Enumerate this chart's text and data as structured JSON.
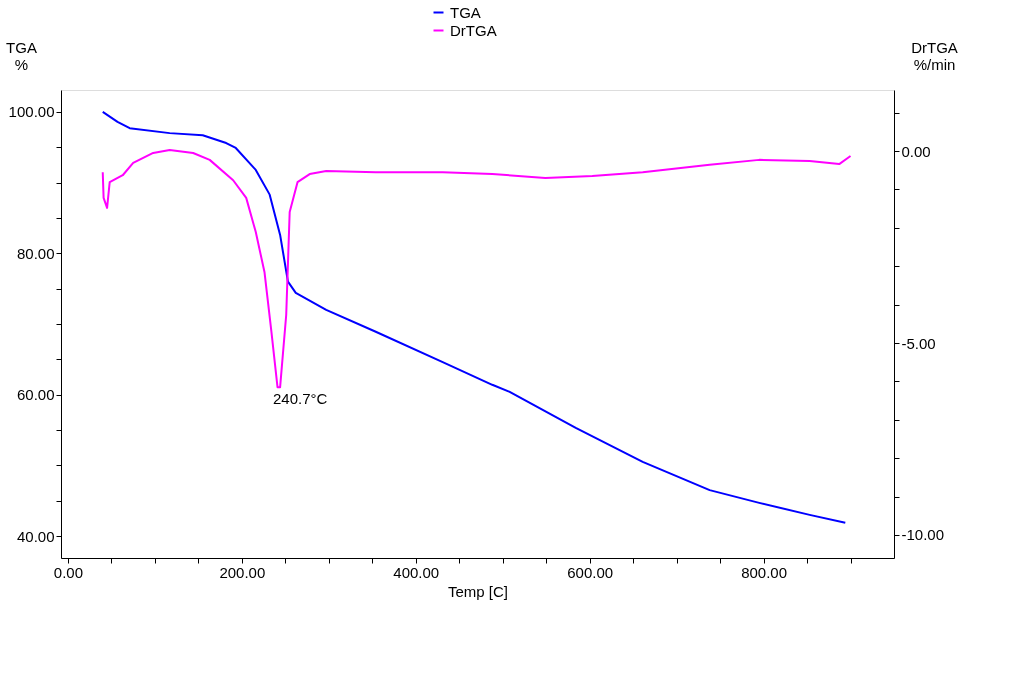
{
  "chart_data": {
    "type": "line",
    "xlabel": "Temp  [C]",
    "ylabel": "TGA\n%",
    "y2label": "DrTGA\n%/min",
    "legend": "top",
    "grid": false,
    "line_style": "solid",
    "xlim": [
      -8,
      950
    ],
    "ylim": [
      36.9,
      103.1
    ],
    "y2lim": [
      -10.6,
      1.59
    ],
    "xticks": [
      {
        "value": 0,
        "label": "0.00"
      },
      {
        "value": 50,
        "label": null
      },
      {
        "value": 100,
        "label": null
      },
      {
        "value": 150,
        "label": null
      },
      {
        "value": 200,
        "label": "200.00"
      },
      {
        "value": 250,
        "label": null
      },
      {
        "value": 300,
        "label": null
      },
      {
        "value": 350,
        "label": null
      },
      {
        "value": 400,
        "label": "400.00"
      },
      {
        "value": 450,
        "label": null
      },
      {
        "value": 500,
        "label": null
      },
      {
        "value": 550,
        "label": null
      },
      {
        "value": 600,
        "label": "600.00"
      },
      {
        "value": 650,
        "label": null
      },
      {
        "value": 700,
        "label": null
      },
      {
        "value": 750,
        "label": null
      },
      {
        "value": 800,
        "label": "800.00"
      },
      {
        "value": 850,
        "label": null
      },
      {
        "value": 900,
        "label": null
      }
    ],
    "yticks": [
      {
        "value": 40,
        "label": "40.00"
      },
      {
        "value": 45,
        "label": null
      },
      {
        "value": 50,
        "label": null
      },
      {
        "value": 55,
        "label": null
      },
      {
        "value": 60,
        "label": "60.00"
      },
      {
        "value": 65,
        "label": null
      },
      {
        "value": 70,
        "label": null
      },
      {
        "value": 75,
        "label": null
      },
      {
        "value": 80,
        "label": "80.00"
      },
      {
        "value": 85,
        "label": null
      },
      {
        "value": 90,
        "label": null
      },
      {
        "value": 95,
        "label": null
      },
      {
        "value": 100,
        "label": "100.00"
      }
    ],
    "y2ticks": [
      {
        "value": -10,
        "label": "-10.00"
      },
      {
        "value": -9,
        "label": null
      },
      {
        "value": -8,
        "label": null
      },
      {
        "value": -7,
        "label": null
      },
      {
        "value": -6,
        "label": null
      },
      {
        "value": -5,
        "label": "-5.00"
      },
      {
        "value": -4,
        "label": null
      },
      {
        "value": -3,
        "label": null
      },
      {
        "value": -2,
        "label": null
      },
      {
        "value": -1,
        "label": null
      },
      {
        "value": 0,
        "label": "0.00"
      },
      {
        "value": 1,
        "label": null
      }
    ],
    "series": [
      {
        "name": "TGA",
        "color": "#0000ff",
        "x": [
          40,
          57,
          71,
          117,
          155,
          182,
          193,
          216,
          232,
          244,
          253,
          262,
          297,
          354,
          431,
          488,
          508,
          584,
          661,
          738,
          795,
          853,
          894
        ],
        "values": [
          100.0,
          98.6,
          97.7,
          97.0,
          96.7,
          95.6,
          94.9,
          91.8,
          88.3,
          82.6,
          76.0,
          74.4,
          72.0,
          68.9,
          64.6,
          61.4,
          60.4,
          55.3,
          50.5,
          46.5,
          44.7,
          43.0,
          41.9
        ]
      },
      {
        "name": "DrTGA",
        "color": "#ff00ff",
        "axis": "y2",
        "x": [
          40,
          41,
          45,
          48,
          63,
          75,
          98,
          117,
          144,
          163,
          190,
          205,
          216,
          226,
          234,
          241,
          244,
          251,
          255,
          264,
          278,
          297,
          354,
          431,
          488,
          549,
          603,
          661,
          738,
          795,
          853,
          887,
          900
        ],
        "values": [
          -0.55,
          -1.22,
          -1.48,
          -0.81,
          -0.63,
          -0.31,
          -0.05,
          0.03,
          -0.05,
          -0.23,
          -0.76,
          -1.22,
          -2.11,
          -3.15,
          -4.71,
          -6.15,
          -6.15,
          -4.27,
          -1.59,
          -0.81,
          -0.6,
          -0.52,
          -0.55,
          -0.55,
          -0.6,
          -0.7,
          -0.65,
          -0.55,
          -0.36,
          -0.23,
          -0.26,
          -0.34,
          -0.13
        ]
      }
    ],
    "annotations": [
      "240.7°C"
    ]
  }
}
